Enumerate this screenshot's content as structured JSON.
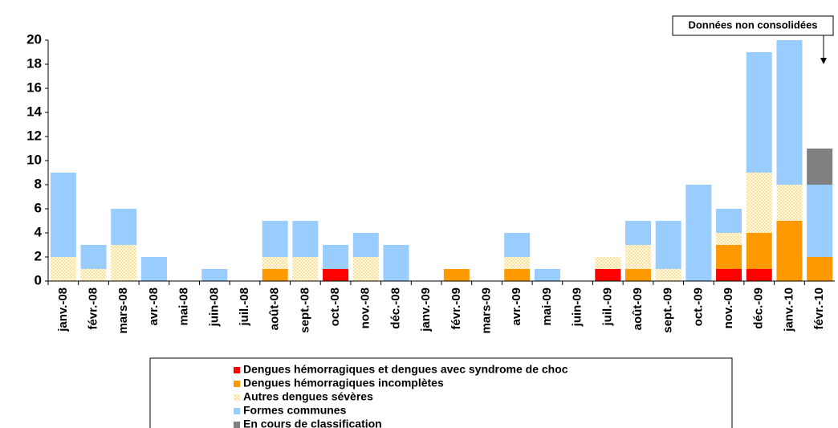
{
  "chart_data": {
    "type": "stacked_bar",
    "annotation": "Données non consolidées",
    "categories": [
      "janv.-08",
      "févr.-08",
      "mars-08",
      "avr.-08",
      "mai-08",
      "juin-08",
      "juil.-08",
      "août-08",
      "sept.-08",
      "oct.-08",
      "nov.-08",
      "déc.-08",
      "janv.-09",
      "févr.-09",
      "mars-09",
      "avr.-09",
      "mai-09",
      "juin-09",
      "juil.-09",
      "août-09",
      "sept.-09",
      "oct.-09",
      "nov.-09",
      "déc.-09",
      "janv.-10",
      "févr.-10"
    ],
    "series": [
      {
        "name": "Dengues hémorragiques et dengues avec syndrome de choc",
        "color": "#ff0000",
        "values": [
          0,
          0,
          0,
          0,
          0,
          0,
          0,
          0,
          0,
          1,
          0,
          0,
          0,
          0,
          0,
          0,
          0,
          0,
          1,
          0,
          0,
          0,
          1,
          1,
          0,
          0
        ]
      },
      {
        "name": "Dengues hémorragiques incomplètes",
        "color": "#ff9900",
        "values": [
          0,
          0,
          0,
          0,
          0,
          0,
          0,
          1,
          0,
          0,
          0,
          0,
          0,
          1,
          0,
          1,
          0,
          0,
          0,
          1,
          0,
          0,
          2,
          3,
          5,
          2
        ]
      },
      {
        "name": "Autres dengues sévères",
        "color": "#ffcc66",
        "pattern": "dotted",
        "values": [
          2,
          1,
          3,
          0,
          0,
          0,
          0,
          1,
          2,
          0,
          2,
          0,
          0,
          0,
          0,
          1,
          0,
          0,
          1,
          2,
          1,
          0,
          1,
          5,
          3,
          0
        ]
      },
      {
        "name": "Formes communes",
        "color": "#99ccff",
        "values": [
          7,
          2,
          3,
          2,
          0,
          1,
          0,
          3,
          3,
          2,
          2,
          3,
          0,
          0,
          0,
          2,
          1,
          0,
          0,
          2,
          4,
          8,
          2,
          10,
          12,
          6
        ]
      },
      {
        "name": "En cours de classification",
        "color": "#808080",
        "values": [
          0,
          0,
          0,
          0,
          0,
          0,
          0,
          0,
          0,
          0,
          0,
          0,
          0,
          0,
          0,
          0,
          0,
          0,
          0,
          0,
          0,
          0,
          0,
          0,
          0,
          3
        ]
      }
    ],
    "ylim": [
      0,
      20
    ],
    "yticks": [
      0,
      2,
      4,
      6,
      8,
      10,
      12,
      14,
      16,
      18,
      20
    ],
    "grid": false
  }
}
